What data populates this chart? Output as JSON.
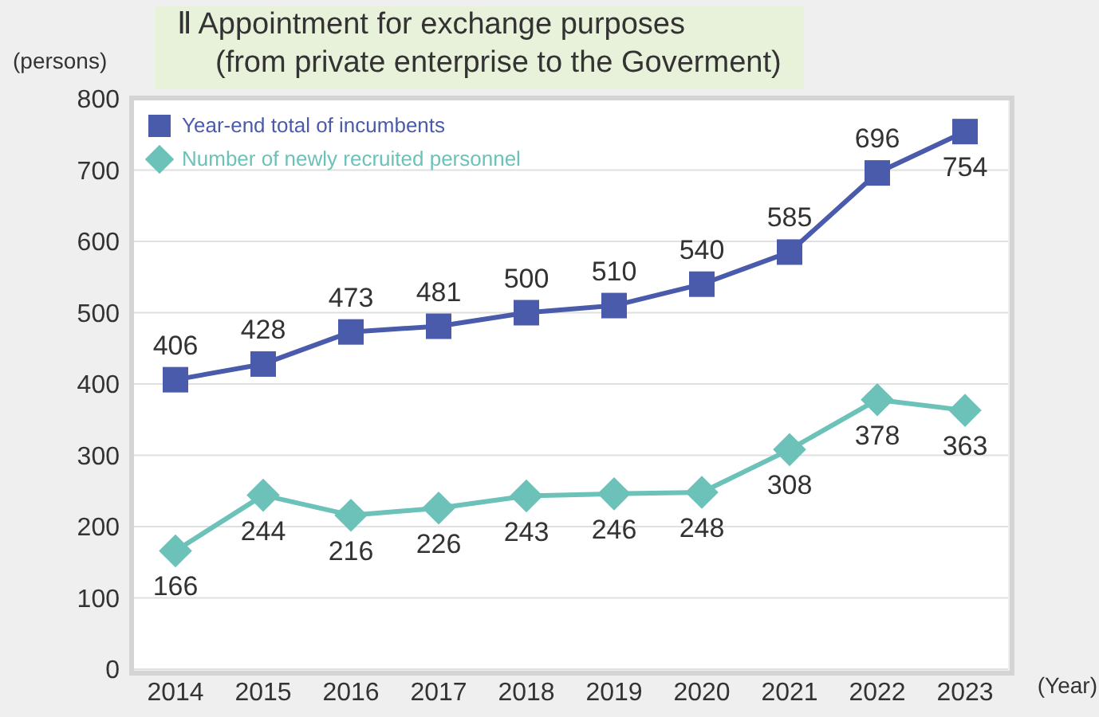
{
  "chart_data": {
    "type": "line",
    "title": "Ⅱ Appointment for exchange purposes\n(from private enterprise to the Goverment)",
    "ylabel": "(persons)",
    "xlabel": "(Year)",
    "categories": [
      "2014",
      "2015",
      "2016",
      "2017",
      "2018",
      "2019",
      "2020",
      "2021",
      "2022",
      "2023"
    ],
    "series": [
      {
        "name": "Year-end total of incumbents",
        "color": "#4a5bab",
        "marker": "square",
        "values": [
          406,
          428,
          473,
          481,
          500,
          510,
          540,
          585,
          696,
          754
        ]
      },
      {
        "name": "Number of newly recruited personnel",
        "color": "#6cc2b9",
        "marker": "diamond",
        "values": [
          166,
          244,
          216,
          226,
          243,
          246,
          248,
          308,
          378,
          363
        ]
      }
    ],
    "ylim": [
      0,
      800
    ],
    "yticks": [
      0,
      100,
      200,
      300,
      400,
      500,
      600,
      700,
      800
    ],
    "grid": "y",
    "legend": "top left",
    "data_labels": true,
    "line_style": "solid"
  }
}
